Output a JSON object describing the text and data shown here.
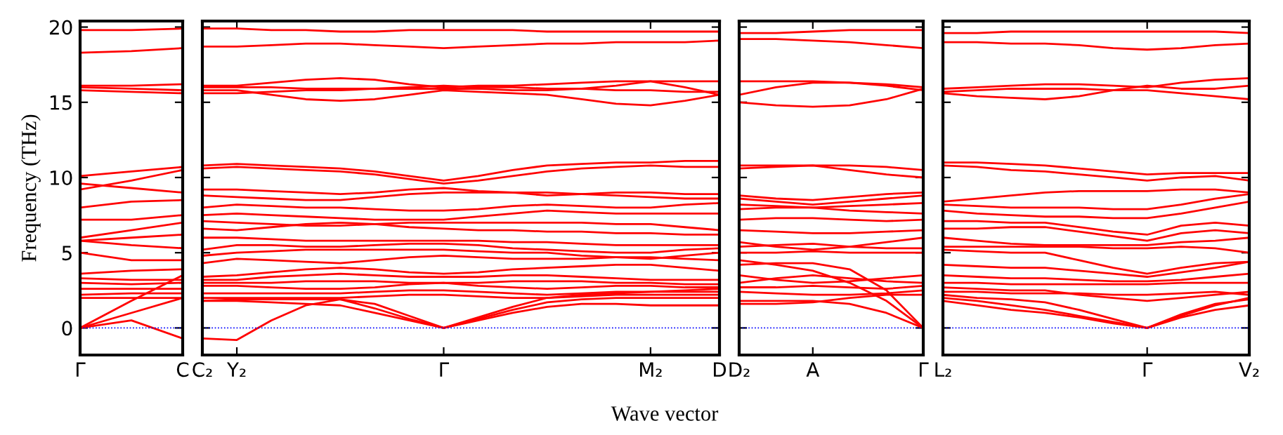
{
  "chart_data": [
    {
      "type": "line",
      "ylabel": "Frequency (THz)",
      "categories": [
        "Γ",
        null,
        "C"
      ],
      "ylim": [
        -1.8,
        20.4
      ],
      "yticks": [
        0,
        5,
        10,
        15,
        20
      ],
      "line_style": "solid",
      "ref_lines": [
        {
          "axis": "y",
          "value": 0,
          "label": null,
          "color": "#0000ff",
          "line_style": "dotted"
        }
      ],
      "series": [
        {
          "color": "#ff0000",
          "values": [
            19.8,
            19.8,
            19.9
          ]
        },
        {
          "color": "#ff0000",
          "values": [
            18.3,
            18.4,
            18.6
          ]
        },
        {
          "color": "#ff0000",
          "values": [
            16.1,
            16.1,
            16.2
          ]
        },
        {
          "color": "#ff0000",
          "values": [
            16.0,
            15.9,
            15.8
          ]
        },
        {
          "color": "#ff0000",
          "values": [
            15.8,
            15.7,
            15.6
          ]
        },
        {
          "color": "#ff0000",
          "values": [
            10.1,
            10.4,
            10.7
          ]
        },
        {
          "color": "#ff0000",
          "values": [
            9.6,
            9.3,
            9.0
          ]
        },
        {
          "color": "#ff0000",
          "values": [
            9.2,
            9.8,
            10.5
          ]
        },
        {
          "color": "#ff0000",
          "values": [
            8.0,
            8.4,
            8.5
          ]
        },
        {
          "color": "#ff0000",
          "values": [
            7.2,
            7.2,
            7.5
          ]
        },
        {
          "color": "#ff0000",
          "values": [
            6.0,
            6.5,
            7.0
          ]
        },
        {
          "color": "#ff0000",
          "values": [
            5.8,
            5.5,
            5.3
          ]
        },
        {
          "color": "#ff0000",
          "values": [
            5.0,
            4.5,
            4.5
          ]
        },
        {
          "color": "#ff0000",
          "values": [
            5.8,
            6.0,
            6.2
          ]
        },
        {
          "color": "#ff0000",
          "values": [
            3.6,
            3.8,
            3.9
          ]
        },
        {
          "color": "#ff0000",
          "values": [
            3.3,
            3.2,
            3.2
          ]
        },
        {
          "color": "#ff0000",
          "values": [
            3.0,
            2.9,
            3.0
          ]
        },
        {
          "color": "#ff0000",
          "values": [
            2.6,
            2.6,
            2.6
          ]
        },
        {
          "color": "#ff0000",
          "values": [
            2.2,
            2.3,
            2.3
          ]
        },
        {
          "color": "#ff0000",
          "values": [
            2.0,
            2.0,
            2.0
          ]
        },
        {
          "color": "#ff0000",
          "values": [
            0,
            1.8,
            3.5
          ]
        },
        {
          "color": "#ff0000",
          "values": [
            0,
            1.0,
            2.0
          ]
        },
        {
          "color": "#ff0000",
          "values": [
            0,
            0.5,
            -0.7
          ]
        }
      ]
    },
    {
      "type": "line",
      "xlabel": "Wave vector",
      "tick_labels": "x",
      "categories": [
        "C₂",
        "Y₂",
        null,
        null,
        null,
        null,
        null,
        "Γ",
        null,
        null,
        null,
        null,
        null,
        "M₂",
        null,
        "D"
      ],
      "ylim": [
        -1.8,
        20.4
      ],
      "yticks": [
        0,
        5,
        10,
        15,
        20
      ],
      "line_style": "solid",
      "ref_lines": [
        {
          "axis": "y",
          "value": 0,
          "label": null,
          "color": "#0000ff",
          "line_style": "dotted"
        }
      ],
      "series": [
        {
          "color": "#ff0000",
          "values": [
            19.9,
            19.9,
            19.8,
            19.8,
            19.7,
            19.7,
            19.8,
            19.8,
            19.8,
            19.8,
            19.7,
            19.7,
            19.7,
            19.7,
            19.7,
            19.7
          ]
        },
        {
          "color": "#ff0000",
          "values": [
            18.7,
            18.7,
            18.8,
            18.9,
            18.9,
            18.8,
            18.7,
            18.6,
            18.7,
            18.8,
            18.9,
            18.9,
            19.0,
            19.0,
            19.0,
            19.1
          ]
        },
        {
          "color": "#ff0000",
          "values": [
            16.1,
            16.1,
            16.3,
            16.5,
            16.6,
            16.5,
            16.2,
            16.0,
            16.1,
            16.1,
            16.2,
            16.3,
            16.4,
            16.4,
            16.0,
            15.5
          ]
        },
        {
          "color": "#ff0000",
          "values": [
            16.0,
            16.0,
            16.0,
            15.9,
            15.9,
            15.9,
            15.9,
            15.9,
            15.9,
            15.8,
            15.8,
            15.9,
            16.1,
            16.4,
            16.4,
            16.4
          ]
        },
        {
          "color": "#ff0000",
          "values": [
            15.8,
            15.8,
            15.5,
            15.2,
            15.1,
            15.2,
            15.5,
            15.8,
            15.7,
            15.6,
            15.5,
            15.2,
            14.9,
            14.8,
            15.1,
            15.5
          ]
        },
        {
          "color": "#ff0000",
          "values": [
            15.6,
            15.6,
            15.7,
            15.8,
            15.8,
            15.9,
            16.0,
            16.1,
            16.0,
            16.0,
            15.9,
            15.9,
            15.8,
            15.8,
            15.7,
            15.7
          ]
        },
        {
          "color": "#ff0000",
          "values": [
            10.8,
            10.9,
            10.8,
            10.7,
            10.6,
            10.4,
            10.1,
            9.8,
            10.1,
            10.5,
            10.8,
            10.9,
            11.0,
            11.0,
            11.1,
            11.1
          ]
        },
        {
          "color": "#ff0000",
          "values": [
            10.6,
            10.7,
            10.6,
            10.5,
            10.4,
            10.2,
            9.9,
            9.6,
            9.8,
            10.1,
            10.4,
            10.6,
            10.7,
            10.8,
            10.7,
            10.7
          ]
        },
        {
          "color": "#ff0000",
          "values": [
            9.2,
            9.2,
            9.1,
            9.0,
            8.9,
            9.0,
            9.2,
            9.3,
            9.1,
            9.0,
            8.8,
            8.9,
            9.0,
            9.0,
            8.9,
            8.9
          ]
        },
        {
          "color": "#ff0000",
          "values": [
            8.8,
            8.7,
            8.6,
            8.5,
            8.5,
            8.7,
            8.9,
            9.0,
            9.0,
            9.0,
            9.0,
            8.9,
            8.8,
            8.7,
            8.6,
            8.6
          ]
        },
        {
          "color": "#ff0000",
          "values": [
            8.0,
            8.2,
            8.1,
            8.0,
            8.0,
            7.9,
            7.8,
            7.8,
            7.9,
            8.1,
            8.2,
            8.1,
            8.0,
            8.0,
            8.2,
            8.3
          ]
        },
        {
          "color": "#ff0000",
          "values": [
            7.5,
            7.6,
            7.5,
            7.4,
            7.3,
            7.2,
            7.2,
            7.2,
            7.4,
            7.6,
            7.8,
            7.7,
            7.6,
            7.6,
            7.6,
            7.6
          ]
        },
        {
          "color": "#ff0000",
          "values": [
            7.1,
            7.0,
            6.9,
            6.8,
            6.8,
            6.9,
            7.0,
            7.0,
            7.0,
            7.0,
            7.0,
            7.0,
            6.9,
            6.9,
            6.7,
            6.5
          ]
        },
        {
          "color": "#ff0000",
          "values": [
            6.6,
            6.5,
            6.7,
            6.9,
            7.0,
            6.9,
            6.7,
            6.6,
            6.5,
            6.5,
            6.4,
            6.4,
            6.3,
            6.3,
            6.2,
            6.2
          ]
        },
        {
          "color": "#ff0000",
          "values": [
            6.0,
            6.0,
            5.9,
            5.8,
            5.8,
            5.8,
            5.8,
            5.8,
            5.8,
            5.7,
            5.7,
            5.6,
            5.5,
            5.5,
            5.5,
            5.5
          ]
        },
        {
          "color": "#ff0000",
          "values": [
            5.2,
            5.5,
            5.5,
            5.4,
            5.4,
            5.5,
            5.6,
            5.6,
            5.5,
            5.3,
            5.2,
            5.1,
            5.0,
            5.0,
            5.2,
            5.3
          ]
        },
        {
          "color": "#ff0000",
          "values": [
            4.8,
            5.0,
            5.1,
            5.2,
            5.2,
            5.2,
            5.2,
            5.2,
            5.1,
            5.0,
            5.0,
            4.8,
            4.7,
            4.6,
            4.8,
            5.0
          ]
        },
        {
          "color": "#ff0000",
          "values": [
            4.3,
            4.6,
            4.5,
            4.4,
            4.3,
            4.5,
            4.7,
            4.8,
            4.7,
            4.6,
            4.6,
            4.6,
            4.7,
            4.7,
            4.6,
            4.5
          ]
        },
        {
          "color": "#ff0000",
          "values": [
            3.4,
            3.5,
            3.7,
            3.9,
            4.0,
            3.9,
            3.7,
            3.6,
            3.7,
            3.9,
            4.0,
            4.1,
            4.2,
            4.2,
            4.0,
            3.8
          ]
        },
        {
          "color": "#ff0000",
          "values": [
            3.2,
            3.2,
            3.4,
            3.5,
            3.6,
            3.5,
            3.4,
            3.4,
            3.4,
            3.5,
            3.5,
            3.4,
            3.3,
            3.2,
            3.2,
            3.2
          ]
        },
        {
          "color": "#ff0000",
          "values": [
            3.0,
            3.0,
            3.0,
            3.1,
            3.1,
            3.1,
            3.0,
            3.0,
            3.0,
            3.1,
            3.1,
            3.1,
            3.0,
            3.0,
            2.9,
            2.9
          ]
        },
        {
          "color": "#ff0000",
          "values": [
            2.8,
            2.8,
            2.7,
            2.6,
            2.6,
            2.7,
            2.9,
            3.0,
            2.8,
            2.7,
            2.6,
            2.7,
            2.8,
            2.8,
            2.7,
            2.7
          ]
        },
        {
          "color": "#ff0000",
          "values": [
            2.3,
            2.3,
            2.3,
            2.3,
            2.3,
            2.4,
            2.5,
            2.5,
            2.4,
            2.3,
            2.2,
            2.3,
            2.4,
            2.4,
            2.4,
            2.4
          ]
        },
        {
          "color": "#ff0000",
          "values": [
            2.0,
            2.0,
            2.0,
            2.0,
            2.0,
            2.1,
            2.2,
            2.2,
            2.1,
            2.0,
            2.0,
            2.1,
            2.2,
            2.2,
            2.2,
            2.2
          ]
        },
        {
          "color": "#ff0000",
          "values": [
            1.8,
            1.8,
            1.7,
            1.6,
            1.5,
            1.0,
            0.5,
            0,
            0.6,
            1.2,
            1.7,
            1.9,
            2.0,
            2.0,
            2.0,
            2.0
          ]
        },
        {
          "color": "#ff0000",
          "values": [
            1.8,
            1.9,
            1.9,
            1.9,
            1.9,
            1.3,
            0.6,
            0,
            0.7,
            1.4,
            2.0,
            2.2,
            2.3,
            2.4,
            2.5,
            2.6
          ]
        },
        {
          "color": "#ff0000",
          "values": [
            -0.7,
            -0.8,
            0.5,
            1.5,
            1.9,
            1.6,
            0.8,
            0,
            0.5,
            1.0,
            1.4,
            1.6,
            1.6,
            1.5,
            1.5,
            1.5
          ]
        }
      ]
    },
    {
      "type": "line",
      "tick_labels": "x",
      "categories": [
        "D₂",
        null,
        "A",
        null,
        null,
        "Γ"
      ],
      "ylim": [
        -1.8,
        20.4
      ],
      "yticks": [
        0,
        5,
        10,
        15,
        20
      ],
      "line_style": "solid",
      "ref_lines": [
        {
          "axis": "y",
          "value": 0,
          "label": null,
          "color": "#0000ff",
          "line_style": "dotted"
        }
      ],
      "series": [
        {
          "color": "#ff0000",
          "values": [
            19.6,
            19.6,
            19.7,
            19.8,
            19.8,
            19.8
          ]
        },
        {
          "color": "#ff0000",
          "values": [
            19.2,
            19.2,
            19.1,
            19.0,
            18.8,
            18.6
          ]
        },
        {
          "color": "#ff0000",
          "values": [
            16.4,
            16.4,
            16.4,
            16.3,
            16.2,
            16.0
          ]
        },
        {
          "color": "#ff0000",
          "values": [
            15.5,
            16.0,
            16.3,
            16.3,
            16.1,
            15.8
          ]
        },
        {
          "color": "#ff0000",
          "values": [
            15.0,
            14.8,
            14.7,
            14.8,
            15.2,
            15.9
          ]
        },
        {
          "color": "#ff0000",
          "values": [
            10.8,
            10.8,
            10.8,
            10.8,
            10.7,
            10.5
          ]
        },
        {
          "color": "#ff0000",
          "values": [
            10.6,
            10.7,
            10.8,
            10.5,
            10.2,
            10.0
          ]
        },
        {
          "color": "#ff0000",
          "values": [
            8.8,
            8.6,
            8.5,
            8.7,
            8.9,
            9.0
          ]
        },
        {
          "color": "#ff0000",
          "values": [
            8.6,
            8.4,
            8.2,
            8.4,
            8.6,
            8.8
          ]
        },
        {
          "color": "#ff0000",
          "values": [
            8.2,
            8.1,
            8.0,
            8.1,
            8.2,
            8.3
          ]
        },
        {
          "color": "#ff0000",
          "values": [
            7.9,
            8.0,
            8.0,
            7.8,
            7.7,
            7.6
          ]
        },
        {
          "color": "#ff0000",
          "values": [
            7.2,
            7.3,
            7.3,
            7.2,
            7.1,
            7.2
          ]
        },
        {
          "color": "#ff0000",
          "values": [
            6.5,
            6.4,
            6.3,
            6.3,
            6.4,
            6.5
          ]
        },
        {
          "color": "#ff0000",
          "values": [
            5.7,
            5.4,
            5.2,
            5.4,
            5.7,
            6.0
          ]
        },
        {
          "color": "#ff0000",
          "values": [
            5.4,
            5.5,
            5.6,
            5.4,
            5.3,
            5.3
          ]
        },
        {
          "color": "#ff0000",
          "values": [
            5.0,
            5.0,
            5.1,
            5.0,
            5.0,
            5.0
          ]
        },
        {
          "color": "#ff0000",
          "values": [
            4.5,
            4.2,
            3.8,
            3.0,
            1.8,
            0
          ]
        },
        {
          "color": "#ff0000",
          "values": [
            4.2,
            4.3,
            4.3,
            3.9,
            2.5,
            0
          ]
        },
        {
          "color": "#ff0000",
          "values": [
            3.5,
            3.2,
            3.0,
            3.1,
            3.3,
            3.5
          ]
        },
        {
          "color": "#ff0000",
          "values": [
            3.0,
            3.3,
            3.5,
            3.3,
            3.1,
            3.0
          ]
        },
        {
          "color": "#ff0000",
          "values": [
            2.7,
            2.7,
            2.8,
            2.7,
            2.6,
            2.8
          ]
        },
        {
          "color": "#ff0000",
          "values": [
            2.4,
            2.3,
            2.2,
            2.2,
            2.3,
            2.5
          ]
        },
        {
          "color": "#ff0000",
          "values": [
            1.8,
            1.8,
            1.8,
            1.6,
            1.0,
            0
          ]
        },
        {
          "color": "#ff0000",
          "values": [
            1.6,
            1.6,
            1.7,
            2.0,
            2.2,
            2.2
          ]
        }
      ]
    },
    {
      "type": "line",
      "tick_labels": "x",
      "categories": [
        "L₂",
        null,
        null,
        null,
        null,
        null,
        "Γ",
        null,
        null,
        "V₂"
      ],
      "ylim": [
        -1.8,
        20.4
      ],
      "yticks": [
        0,
        5,
        10,
        15,
        20
      ],
      "line_style": "solid",
      "ref_lines": [
        {
          "axis": "y",
          "value": 0,
          "label": null,
          "color": "#0000ff",
          "line_style": "dotted"
        }
      ],
      "series": [
        {
          "color": "#ff0000",
          "values": [
            19.6,
            19.6,
            19.7,
            19.7,
            19.7,
            19.7,
            19.7,
            19.7,
            19.7,
            19.6
          ]
        },
        {
          "color": "#ff0000",
          "values": [
            19.0,
            19.0,
            18.9,
            18.9,
            18.8,
            18.6,
            18.5,
            18.6,
            18.8,
            18.9
          ]
        },
        {
          "color": "#ff0000",
          "values": [
            15.9,
            16.0,
            16.1,
            16.2,
            16.2,
            16.1,
            16.0,
            16.3,
            16.5,
            16.6
          ]
        },
        {
          "color": "#ff0000",
          "values": [
            15.7,
            15.8,
            15.9,
            15.9,
            15.9,
            15.8,
            15.8,
            15.6,
            15.4,
            15.2
          ]
        },
        {
          "color": "#ff0000",
          "values": [
            15.6,
            15.4,
            15.3,
            15.2,
            15.4,
            15.8,
            16.1,
            15.9,
            15.9,
            16.1
          ]
        },
        {
          "color": "#ff0000",
          "values": [
            11.0,
            11.0,
            10.9,
            10.8,
            10.6,
            10.4,
            10.2,
            10.3,
            10.3,
            10.3
          ]
        },
        {
          "color": "#ff0000",
          "values": [
            10.8,
            10.7,
            10.5,
            10.4,
            10.2,
            10.0,
            9.8,
            10.0,
            10.1,
            9.8
          ]
        },
        {
          "color": "#ff0000",
          "values": [
            8.4,
            8.6,
            8.8,
            9.0,
            9.1,
            9.1,
            9.1,
            9.2,
            9.2,
            9.0
          ]
        },
        {
          "color": "#ff0000",
          "values": [
            8.2,
            8.1,
            8.0,
            8.0,
            8.0,
            7.9,
            7.9,
            8.2,
            8.6,
            8.9
          ]
        },
        {
          "color": "#ff0000",
          "values": [
            7.8,
            7.6,
            7.5,
            7.4,
            7.4,
            7.3,
            7.3,
            7.6,
            8.0,
            8.4
          ]
        },
        {
          "color": "#ff0000",
          "values": [
            7.1,
            7.1,
            7.0,
            7.0,
            6.7,
            6.4,
            6.2,
            6.8,
            7.0,
            6.8
          ]
        },
        {
          "color": "#ff0000",
          "values": [
            6.6,
            6.6,
            6.7,
            6.7,
            6.4,
            6.1,
            5.8,
            6.3,
            6.5,
            6.3
          ]
        },
        {
          "color": "#ff0000",
          "values": [
            6.0,
            5.8,
            5.6,
            5.5,
            5.5,
            5.5,
            5.5,
            5.7,
            5.8,
            6.0
          ]
        },
        {
          "color": "#ff0000",
          "values": [
            5.4,
            5.4,
            5.4,
            5.4,
            5.4,
            5.3,
            5.3,
            5.4,
            5.3,
            5.0
          ]
        },
        {
          "color": "#ff0000",
          "values": [
            5.2,
            5.1,
            5.0,
            5.0,
            4.5,
            4.0,
            3.6,
            4.0,
            4.3,
            4.4
          ]
        },
        {
          "color": "#ff0000",
          "values": [
            4.2,
            4.1,
            4.0,
            4.0,
            3.8,
            3.6,
            3.4,
            3.7,
            4.0,
            4.4
          ]
        },
        {
          "color": "#ff0000",
          "values": [
            3.5,
            3.4,
            3.3,
            3.3,
            3.2,
            3.1,
            3.1,
            3.2,
            3.4,
            3.6
          ]
        },
        {
          "color": "#ff0000",
          "values": [
            3.0,
            3.0,
            2.9,
            2.9,
            2.9,
            2.9,
            2.9,
            3.0,
            3.0,
            3.0
          ]
        },
        {
          "color": "#ff0000",
          "values": [
            2.7,
            2.6,
            2.5,
            2.5,
            2.2,
            2.0,
            1.8,
            2.0,
            2.2,
            2.4
          ]
        },
        {
          "color": "#ff0000",
          "values": [
            2.4,
            2.4,
            2.3,
            2.3,
            2.3,
            2.2,
            2.2,
            2.3,
            2.4,
            2.2
          ]
        },
        {
          "color": "#ff0000",
          "values": [
            2.2,
            2.0,
            1.9,
            1.7,
            1.2,
            0.6,
            0,
            0.9,
            1.6,
            1.9
          ]
        },
        {
          "color": "#ff0000",
          "values": [
            2.0,
            1.8,
            1.5,
            1.2,
            0.8,
            0.4,
            0,
            0.7,
            1.2,
            1.5
          ]
        },
        {
          "color": "#ff0000",
          "values": [
            1.8,
            1.5,
            1.2,
            1.0,
            0.7,
            0.3,
            0,
            0.8,
            1.5,
            2.0
          ]
        }
      ]
    }
  ]
}
